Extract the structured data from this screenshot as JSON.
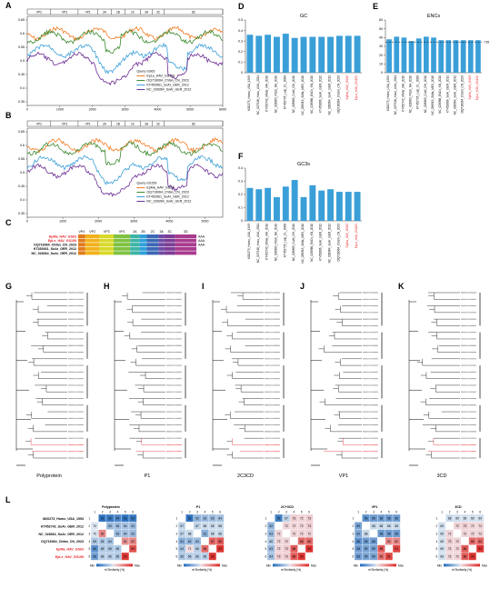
{
  "panels": {
    "A": "A",
    "B": "B",
    "C": "C",
    "D": "D",
    "E": "E",
    "F": "F",
    "G": "G",
    "H": "H",
    "I": "I",
    "J": "J",
    "K": "K",
    "L": "L"
  },
  "genome_regions": [
    "VP2",
    "VP1",
    "2A",
    "2B",
    "2C",
    "3A",
    "3C",
    "3D"
  ],
  "genome_regions_c": [
    "VP4",
    "VP2",
    "VP3",
    "VP1",
    "2A",
    "2B",
    "2C",
    "3A",
    "3C",
    "3D"
  ],
  "similarity": {
    "yticks_A": [
      "0.65",
      "0.6",
      "0.55",
      "0.5",
      "0.45",
      "0.4",
      "0.35"
    ],
    "yticks_B": [
      "0.65",
      "0.6",
      "0.55",
      "0.5",
      "0.45",
      "0.4",
      "0.35"
    ],
    "xticks": [
      "0",
      "1000",
      "2000",
      "3000",
      "4000",
      "5000",
      "6000"
    ],
    "xticks_B": [
      "0",
      "1000",
      "2000",
      "3000",
      "4000",
      "5000"
    ],
    "legend_A": {
      "query": "Query   GS63",
      "items": [
        {
          "name": "EpLe_HAV_GS159",
          "color": "#f07a20"
        },
        {
          "name": "OQ716064_Chfan_CN_2023",
          "color": "#3a8a2e"
        },
        {
          "name": "KT452661_SoAr_GER_2012",
          "color": "#3a9fd8"
        },
        {
          "name": "NC_028364_SoAr_GER_2012",
          "color": "#6a2b93"
        }
      ]
    },
    "legend_B": {
      "query": "Query   GS159",
      "items": [
        {
          "name": "EpMa_HAV_GS63",
          "color": "#f07a20"
        },
        {
          "name": "OQ716064_Chfan_CN_2023",
          "color": "#3a8a2e"
        },
        {
          "name": "KT452661_SoAr_GER_2012",
          "color": "#3a9fd8"
        },
        {
          "name": "NC_028364_SoAr_GER_2012",
          "color": "#6a2b93"
        }
      ]
    }
  },
  "genome_c": {
    "strains": [
      {
        "name": "EpMa_HAV_GS63",
        "color": "#e8232a"
      },
      {
        "name": "EpLe_HAV_GS159",
        "color": "#e8232a"
      },
      {
        "name": "OQ716064_Chfan_CN_2023",
        "color": "#000000"
      },
      {
        "name": "KT452661_SoAr_GER_2012",
        "color": "#000000"
      },
      {
        "name": "NC_028364_SoAr_GER_2012",
        "color": "#000000"
      }
    ],
    "tail": "AAA",
    "region_colors": [
      "#e07b1d",
      "#f2b21c",
      "#d9d92a",
      "#7fc241",
      "#3cb4a5",
      "#2e9fd9",
      "#3b68b5",
      "#6e4aa5",
      "#7c3d97",
      "#a93b8f"
    ]
  },
  "bar_strains": [
    "M20273_Homo_USA_1993",
    "NC_027918_Hoso_USA_2011",
    "KT452742_MMar_MA_2010",
    "NC_028363_Pdob_NA_2010",
    "KT452735_Laip_CL_2008",
    "NC_028365_CoAf_GH_2010",
    "NC_038313_SMla_MEX_2010",
    "NC_028366_EhCo_KN_2010",
    "KT452666_SoAr_GER_2012",
    "NC_028364_SoAr_GER_2012",
    "OQ716064_ChSm_CN_2023",
    "EpMa_HAV_GS63",
    "EpLe_HAV_GS159"
  ],
  "chart_data": [
    {
      "type": "bar",
      "title": "GC",
      "categories": [
        "M20273_Homo_USA_1993",
        "NC_027918_Hoso_USA_2011",
        "KT452742_MMar_MA_2010",
        "NC_028363_Pdob_NA_2010",
        "KT452735_Laip_CL_2008",
        "NC_028365_CoAf_GH_2010",
        "NC_038313_SMla_MEX_2010",
        "NC_028366_EhCo_KN_2010",
        "KT452666_SoAr_GER_2012",
        "NC_028364_SoAr_GER_2012",
        "OQ716064_ChSm_CN_2023",
        "EpMa_HAV_GS63",
        "EpLe_HAV_GS159"
      ],
      "values": [
        0.36,
        0.35,
        0.36,
        0.34,
        0.37,
        0.33,
        0.34,
        0.34,
        0.34,
        0.34,
        0.35,
        0.35,
        0.35
      ],
      "ylim": [
        0,
        0.5
      ],
      "yticks": [
        "0",
        "0.1",
        "0.2",
        "0.3",
        "0.4",
        "0.5"
      ],
      "color": "#3a9fd8"
    },
    {
      "type": "bar",
      "title": "ENCs",
      "categories": [
        "M20273_Homo_USA_1993",
        "NC_027918_Hoso_USA_2011",
        "KT452742_MMar_MA_2010",
        "NC_028363_Pdob_NA_2010",
        "KT452735_Laip_CL_2008",
        "NC_028365_CoAf_GH_2010",
        "NC_038313_SMla_MEX_2010",
        "NC_028366_EhCo_KN_2010",
        "KT452666_SoAr_GER_2012",
        "NC_028364_SoAr_GER_2012",
        "OQ716064_ChSm_CN_2023",
        "EpMa_HAV_GS63",
        "EpLe_HAV_GS159"
      ],
      "values": [
        38,
        41,
        40,
        36,
        39,
        41,
        40,
        37,
        37,
        37,
        37,
        37,
        37
      ],
      "ylim": [
        0,
        60
      ],
      "yticks": [
        "0",
        "10",
        "20",
        "30",
        "40",
        "50",
        "60"
      ],
      "reference_line": 35,
      "reference_label": "=35",
      "color": "#3a9fd8"
    },
    {
      "type": "bar",
      "title": "GC3s",
      "categories": [
        "M20273_Homo_USA_1993",
        "NC_027918_Hoso_USA_2011",
        "KT452742_MMar_MA_2010",
        "NC_028363_Pdob_NA_2010",
        "KT452735_Laip_CL_2008",
        "NC_028365_CoAf_GH_2010",
        "NC_038313_SMla_MEX_2010",
        "NC_028366_EhCo_KN_2010",
        "KT452666_SoAr_GER_2012",
        "NC_028364_SoAr_GER_2012",
        "OQ716064_ChSm_CN_2023",
        "EpMa_HAV_GS63",
        "EpLe_HAV_GS159"
      ],
      "values": [
        0.25,
        0.24,
        0.25,
        0.18,
        0.26,
        0.31,
        0.18,
        0.27,
        0.23,
        0.24,
        0.22,
        0.22,
        0.22
      ],
      "ylim": [
        0,
        0.4
      ],
      "yticks": [
        "0",
        "0.1",
        "0.2",
        "0.3",
        "0.4"
      ],
      "color": "#3a9fd8"
    }
  ],
  "trees": [
    {
      "label": "Polyprotein"
    },
    {
      "label": "P1"
    },
    {
      "label": "2C3CD"
    },
    {
      "label": "VP1"
    },
    {
      "label": "3CD"
    }
  ],
  "heatmaps": {
    "titles": [
      "Polyprotein",
      "P1",
      "2C+3CD",
      "VP1",
      "3CD"
    ],
    "row_names": [
      {
        "name": "M20273_Homo_USA_1993",
        "color": "#000000"
      },
      {
        "name": "KT452742_SoAr_GER_2012",
        "color": "#000000"
      },
      {
        "name": "NC_028364_SoAr_GER_2012",
        "color": "#000000"
      },
      {
        "name": "OQ716064_Chfan_CN_2023",
        "color": "#000000"
      },
      {
        "name": "EpMa_HAV_GS63",
        "color": "#e8232a"
      },
      {
        "name": "EpLe_HAV_GS159",
        "color": "#e8232a"
      }
    ],
    "col_numbers": [
      "1",
      "2",
      "3",
      "4",
      "5",
      "6"
    ],
    "scale_min": "Min",
    "scale_max": "Max",
    "scale_label": "nt Similarity (%)",
    "matrices": [
      [
        [
          null,
          51,
          52,
          54,
          51,
          52
        ],
        [
          70,
          null,
          63,
          63,
          64,
          63
        ],
        [
          70,
          82,
          null,
          63,
          64,
          63
        ],
        [
          65,
          65,
          64,
          null,
          81,
          82
        ],
        [
          56,
          65,
          65,
          65,
          null,
          89
        ],
        [
          58,
          66,
          66,
          65,
          93,
          null
        ]
      ],
      [
        [
          null,
          51,
          62,
          63,
          63,
          64
        ],
        [
          67,
          null,
          67,
          68,
          68,
          68
        ],
        [
          67,
          68,
          null,
          61,
          68,
          68
        ],
        [
          61,
          62,
          63,
          null,
          87,
          88
        ],
        [
          64,
          71,
          66,
          86,
          null,
          93
        ],
        [
          65,
          66,
          66,
          66,
          93,
          null
        ]
      ],
      [
        [
          null,
          53,
          67,
          73,
          72,
          73
        ],
        [
          62,
          null,
          72,
          72,
          72,
          73
        ],
        [
          63,
          72,
          null,
          72,
          72,
          72
        ],
        [
          66,
          72,
          72,
          null,
          86,
          86
        ],
        [
          63,
          72,
          73,
          88,
          null,
          93
        ],
        [
          64,
          73,
          73,
          88,
          93,
          null
        ]
      ],
      [
        [
          null,
          56,
          58,
          58,
          58,
          58
        ],
        [
          59,
          null,
          68,
          68,
          68,
          68
        ],
        [
          60,
          68,
          null,
          58,
          58,
          58
        ],
        [
          56,
          58,
          58,
          null,
          82,
          82
        ],
        [
          58,
          59,
          59,
          88,
          null,
          91
        ],
        [
          58,
          59,
          59,
          85,
          91,
          null
        ]
      ],
      [
        [
          null,
          68,
          69,
          69,
          69,
          69
        ],
        [
          69,
          null,
          72,
          73,
          72,
          72
        ],
        [
          69,
          72,
          null,
          72,
          72,
          72
        ],
        [
          69,
          73,
          72,
          null,
          86,
          86
        ],
        [
          69,
          72,
          72,
          88,
          null,
          93
        ],
        [
          69,
          72,
          72,
          88,
          93,
          null
        ]
      ]
    ]
  }
}
